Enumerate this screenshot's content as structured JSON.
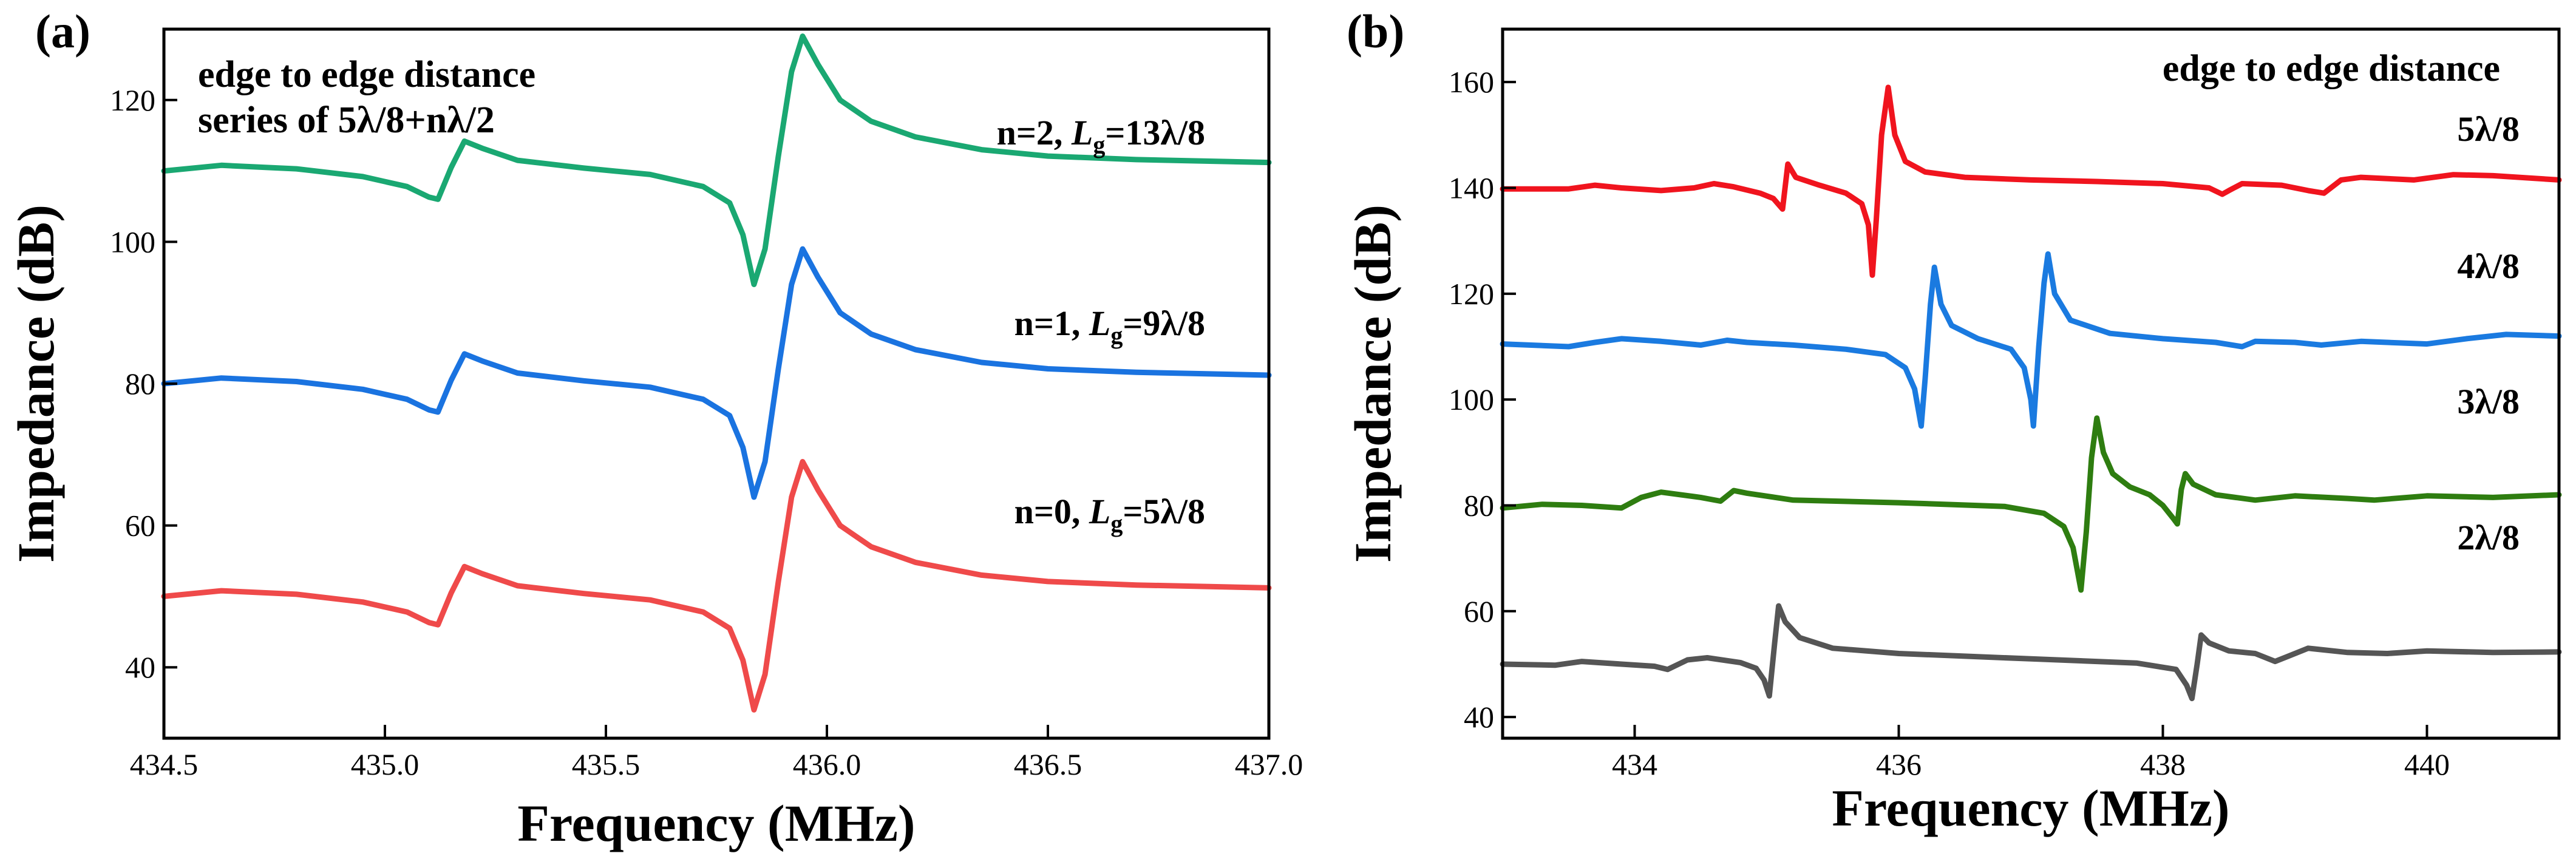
{
  "chart_data": [
    {
      "panel": "(a)",
      "type": "line",
      "xlabel": "Frequency (MHz)",
      "ylabel": "Impedance (dB)",
      "xlim": [
        434.5,
        437.0
      ],
      "ylim": [
        30,
        130
      ],
      "xticks": [
        "434.5",
        "435.0",
        "435.5",
        "436.0",
        "436.5",
        "437.0"
      ],
      "yticks": [
        "40",
        "60",
        "80",
        "100",
        "120"
      ],
      "annotation": [
        "edge to edge distance",
        "series of  5λ/8+nλ/2"
      ],
      "grid": false,
      "series": [
        {
          "label_text": "n=2, L",
          "label_sub": "g",
          "label_tail": "=13λ/8",
          "color": "#1aa872",
          "points": [
            [
              434.5,
              110.0
            ],
            [
              434.63,
              110.8
            ],
            [
              434.8,
              110.3
            ],
            [
              434.95,
              109.2
            ],
            [
              435.05,
              107.8
            ],
            [
              435.1,
              106.3
            ],
            [
              435.12,
              106.0
            ],
            [
              435.15,
              110.5
            ],
            [
              435.18,
              114.2
            ],
            [
              435.22,
              113.2
            ],
            [
              435.3,
              111.5
            ],
            [
              435.45,
              110.4
            ],
            [
              435.6,
              109.5
            ],
            [
              435.72,
              107.8
            ],
            [
              435.78,
              105.5
            ],
            [
              435.81,
              101.0
            ],
            [
              435.835,
              94.0
            ],
            [
              435.86,
              99.0
            ],
            [
              435.89,
              112.0
            ],
            [
              435.92,
              124.0
            ],
            [
              435.945,
              129.0
            ],
            [
              435.98,
              125.0
            ],
            [
              436.03,
              120.0
            ],
            [
              436.1,
              117.0
            ],
            [
              436.2,
              114.8
            ],
            [
              436.35,
              113.0
            ],
            [
              436.5,
              112.1
            ],
            [
              436.7,
              111.6
            ],
            [
              437.0,
              111.2
            ]
          ]
        },
        {
          "label_text": "n=1, L",
          "label_sub": "g",
          "label_tail": "=9λ/8",
          "color": "#1a73e0",
          "points": [
            [
              434.5,
              80.0
            ],
            [
              434.63,
              80.8
            ],
            [
              434.8,
              80.3
            ],
            [
              434.95,
              79.2
            ],
            [
              435.05,
              77.8
            ],
            [
              435.1,
              76.3
            ],
            [
              435.12,
              76.0
            ],
            [
              435.15,
              80.5
            ],
            [
              435.18,
              84.2
            ],
            [
              435.22,
              83.2
            ],
            [
              435.3,
              81.5
            ],
            [
              435.45,
              80.4
            ],
            [
              435.6,
              79.5
            ],
            [
              435.72,
              77.8
            ],
            [
              435.78,
              75.5
            ],
            [
              435.81,
              71.0
            ],
            [
              435.835,
              64.0
            ],
            [
              435.86,
              69.0
            ],
            [
              435.89,
              82.0
            ],
            [
              435.92,
              94.0
            ],
            [
              435.945,
              99.0
            ],
            [
              435.98,
              95.0
            ],
            [
              436.03,
              90.0
            ],
            [
              436.1,
              87.0
            ],
            [
              436.2,
              84.8
            ],
            [
              436.35,
              83.0
            ],
            [
              436.5,
              82.1
            ],
            [
              436.7,
              81.6
            ],
            [
              437.0,
              81.2
            ]
          ]
        },
        {
          "label_text": "n=0, L",
          "label_sub": "g",
          "label_tail": "=5λ/8",
          "color": "#ef4a4a",
          "points": [
            [
              434.5,
              50.0
            ],
            [
              434.63,
              50.8
            ],
            [
              434.8,
              50.3
            ],
            [
              434.95,
              49.2
            ],
            [
              435.05,
              47.8
            ],
            [
              435.1,
              46.3
            ],
            [
              435.12,
              46.0
            ],
            [
              435.15,
              50.5
            ],
            [
              435.18,
              54.2
            ],
            [
              435.22,
              53.2
            ],
            [
              435.3,
              51.5
            ],
            [
              435.45,
              50.4
            ],
            [
              435.6,
              49.5
            ],
            [
              435.72,
              47.8
            ],
            [
              435.78,
              45.5
            ],
            [
              435.81,
              41.0
            ],
            [
              435.835,
              34.0
            ],
            [
              435.86,
              39.0
            ],
            [
              435.89,
              52.0
            ],
            [
              435.92,
              64.0
            ],
            [
              435.945,
              69.0
            ],
            [
              435.98,
              65.0
            ],
            [
              436.03,
              60.0
            ],
            [
              436.1,
              57.0
            ],
            [
              436.2,
              54.8
            ],
            [
              436.35,
              53.0
            ],
            [
              436.5,
              52.1
            ],
            [
              436.7,
              51.6
            ],
            [
              437.0,
              51.2
            ]
          ]
        }
      ]
    },
    {
      "panel": "(b)",
      "type": "line",
      "xlabel": "Frequency (MHz)",
      "ylabel": "Impedance (dB)",
      "xlim": [
        433.0,
        441.0
      ],
      "ylim": [
        36,
        170
      ],
      "xticks": [
        "434",
        "436",
        "438",
        "440"
      ],
      "yticks": [
        "40",
        "60",
        "80",
        "100",
        "120",
        "140",
        "160"
      ],
      "annotation": [
        "edge to edge distance"
      ],
      "grid": false,
      "series": [
        {
          "label_text": "5λ/8",
          "color": "#f0141e",
          "points": [
            [
              433.0,
              139.8
            ],
            [
              433.5,
              139.8
            ],
            [
              433.7,
              140.5
            ],
            [
              433.9,
              140.0
            ],
            [
              434.2,
              139.5
            ],
            [
              434.45,
              140.0
            ],
            [
              434.6,
              140.8
            ],
            [
              434.75,
              140.2
            ],
            [
              434.95,
              139.0
            ],
            [
              435.05,
              138.0
            ],
            [
              435.12,
              136.0
            ],
            [
              435.16,
              144.5
            ],
            [
              435.22,
              142.0
            ],
            [
              435.4,
              140.5
            ],
            [
              435.6,
              139.0
            ],
            [
              435.72,
              137.0
            ],
            [
              435.77,
              133.0
            ],
            [
              435.8,
              123.5
            ],
            [
              435.83,
              134.0
            ],
            [
              435.87,
              150.0
            ],
            [
              435.92,
              159.0
            ],
            [
              435.97,
              150.0
            ],
            [
              436.05,
              145.0
            ],
            [
              436.2,
              143.0
            ],
            [
              436.5,
              142.0
            ],
            [
              437.0,
              141.5
            ],
            [
              437.5,
              141.2
            ],
            [
              438.0,
              140.8
            ],
            [
              438.35,
              140.0
            ],
            [
              438.45,
              138.8
            ],
            [
              438.5,
              139.5
            ],
            [
              438.6,
              140.8
            ],
            [
              438.9,
              140.5
            ],
            [
              439.1,
              139.5
            ],
            [
              439.22,
              139.0
            ],
            [
              439.35,
              141.5
            ],
            [
              439.5,
              142.0
            ],
            [
              439.9,
              141.5
            ],
            [
              440.2,
              142.5
            ],
            [
              440.5,
              142.3
            ],
            [
              441.0,
              141.5
            ]
          ]
        },
        {
          "label_text": "4λ/8",
          "color": "#1a7ae0",
          "points": [
            [
              433.0,
              110.5
            ],
            [
              433.5,
              110.0
            ],
            [
              433.7,
              110.8
            ],
            [
              433.9,
              111.5
            ],
            [
              434.2,
              111.0
            ],
            [
              434.5,
              110.3
            ],
            [
              434.7,
              111.2
            ],
            [
              434.85,
              110.8
            ],
            [
              435.2,
              110.3
            ],
            [
              435.6,
              109.5
            ],
            [
              435.9,
              108.5
            ],
            [
              436.05,
              106.0
            ],
            [
              436.12,
              102.0
            ],
            [
              436.17,
              95.0
            ],
            [
              436.2,
              104.0
            ],
            [
              436.24,
              118.0
            ],
            [
              436.27,
              125.0
            ],
            [
              436.32,
              118.0
            ],
            [
              436.4,
              114.0
            ],
            [
              436.6,
              111.5
            ],
            [
              436.85,
              109.5
            ],
            [
              436.95,
              106.0
            ],
            [
              437.0,
              100.0
            ],
            [
              437.02,
              95.0
            ],
            [
              437.06,
              110.0
            ],
            [
              437.1,
              122.0
            ],
            [
              437.13,
              127.5
            ],
            [
              437.18,
              120.0
            ],
            [
              437.3,
              115.0
            ],
            [
              437.6,
              112.5
            ],
            [
              438.0,
              111.5
            ],
            [
              438.4,
              110.8
            ],
            [
              438.6,
              110.0
            ],
            [
              438.7,
              111.0
            ],
            [
              439.0,
              110.8
            ],
            [
              439.2,
              110.3
            ],
            [
              439.5,
              111.0
            ],
            [
              440.0,
              110.5
            ],
            [
              440.3,
              111.5
            ],
            [
              440.6,
              112.3
            ],
            [
              441.0,
              112.0
            ]
          ]
        },
        {
          "label_text": "3λ/8",
          "color": "#2e7d10",
          "points": [
            [
              433.0,
              79.5
            ],
            [
              433.3,
              80.2
            ],
            [
              433.6,
              80.0
            ],
            [
              433.9,
              79.5
            ],
            [
              434.05,
              81.5
            ],
            [
              434.2,
              82.5
            ],
            [
              434.5,
              81.5
            ],
            [
              434.65,
              80.8
            ],
            [
              434.75,
              82.8
            ],
            [
              434.85,
              82.3
            ],
            [
              435.2,
              81.0
            ],
            [
              436.0,
              80.5
            ],
            [
              436.8,
              79.8
            ],
            [
              437.1,
              78.5
            ],
            [
              437.25,
              76.0
            ],
            [
              437.32,
              72.0
            ],
            [
              437.38,
              64.0
            ],
            [
              437.42,
              75.0
            ],
            [
              437.46,
              89.0
            ],
            [
              437.5,
              96.5
            ],
            [
              437.55,
              90.0
            ],
            [
              437.62,
              86.0
            ],
            [
              437.75,
              83.5
            ],
            [
              437.9,
              82.0
            ],
            [
              438.0,
              80.0
            ],
            [
              438.08,
              77.5
            ],
            [
              438.11,
              76.5
            ],
            [
              438.14,
              83.0
            ],
            [
              438.17,
              86.0
            ],
            [
              438.23,
              84.0
            ],
            [
              438.4,
              82.0
            ],
            [
              438.7,
              81.0
            ],
            [
              439.0,
              81.8
            ],
            [
              439.4,
              81.3
            ],
            [
              439.6,
              81.0
            ],
            [
              440.0,
              81.8
            ],
            [
              440.5,
              81.5
            ],
            [
              441.0,
              82.0
            ]
          ]
        },
        {
          "label_text": "2λ/8",
          "color": "#555555",
          "points": [
            [
              433.0,
              50.0
            ],
            [
              433.4,
              49.8
            ],
            [
              433.6,
              50.5
            ],
            [
              433.9,
              50.0
            ],
            [
              434.15,
              49.6
            ],
            [
              434.25,
              49.0
            ],
            [
              434.4,
              50.8
            ],
            [
              434.55,
              51.2
            ],
            [
              434.8,
              50.3
            ],
            [
              434.92,
              49.2
            ],
            [
              434.98,
              47.0
            ],
            [
              435.02,
              44.0
            ],
            [
              435.06,
              54.0
            ],
            [
              435.09,
              61.0
            ],
            [
              435.14,
              58.0
            ],
            [
              435.25,
              55.0
            ],
            [
              435.5,
              53.0
            ],
            [
              436.0,
              52.0
            ],
            [
              437.0,
              51.0
            ],
            [
              437.8,
              50.2
            ],
            [
              438.1,
              49.0
            ],
            [
              438.18,
              46.0
            ],
            [
              438.22,
              43.5
            ],
            [
              438.26,
              50.0
            ],
            [
              438.29,
              55.5
            ],
            [
              438.35,
              54.0
            ],
            [
              438.5,
              52.5
            ],
            [
              438.7,
              52.0
            ],
            [
              438.85,
              50.5
            ],
            [
              438.95,
              51.5
            ],
            [
              439.1,
              53.0
            ],
            [
              439.4,
              52.2
            ],
            [
              439.7,
              52.0
            ],
            [
              440.0,
              52.5
            ],
            [
              440.5,
              52.2
            ],
            [
              441.0,
              52.3
            ]
          ]
        }
      ]
    }
  ]
}
